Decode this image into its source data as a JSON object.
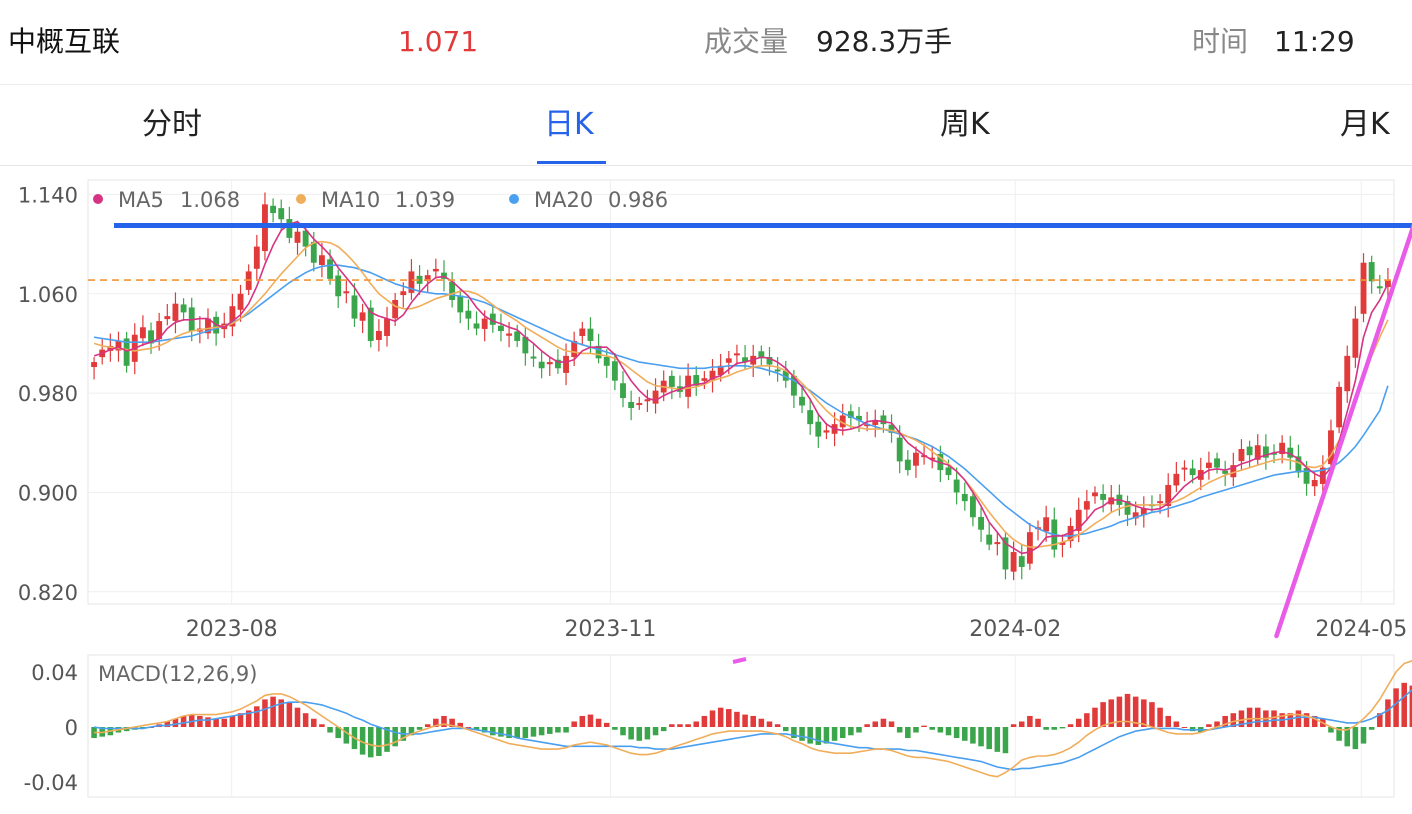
{
  "header": {
    "name": "中概互联",
    "price": "1.071",
    "volume_label": "成交量",
    "volume_value": "928.3万手",
    "time_label": "时间",
    "time_value": "11:29"
  },
  "tabs": [
    {
      "label": "分时",
      "active": false
    },
    {
      "label": "日K",
      "active": true
    },
    {
      "label": "周K",
      "active": false
    },
    {
      "label": "月K",
      "active": false
    }
  ],
  "colors": {
    "up": "#e03a3a",
    "down": "#3aa54a",
    "ma5": "#d63384",
    "ma10": "#f0ad5a",
    "ma20": "#4a9ff0",
    "accent": "#2563eb",
    "trendline": "#e85ce8",
    "dashed": "#f0953a"
  },
  "chart_data": [
    {
      "type": "candlestick",
      "legend": [
        {
          "name": "MA5",
          "value": "1.068"
        },
        {
          "name": "MA10",
          "value": "1.039"
        },
        {
          "name": "MA20",
          "value": "0.986"
        }
      ],
      "y_ticks": [
        "1.140",
        "1.060",
        "0.980",
        "0.900",
        "0.820"
      ],
      "ylim": [
        0.815,
        1.15
      ],
      "x_ticks": [
        "2023-08",
        "2023-11",
        "2024-02",
        "2024-05"
      ],
      "x_tick_positions": [
        0.11,
        0.4,
        0.71,
        0.975
      ],
      "horizontal_line": 1.115,
      "dashed_line": 1.071,
      "trendline": [
        [
          0.91,
          0.75
        ],
        [
          1.02,
          1.15
        ]
      ],
      "close": [
        1.005,
        1.015,
        1.018,
        1.022,
        1.002,
        1.027,
        1.033,
        1.02,
        1.038,
        1.042,
        1.052,
        1.045,
        1.03,
        1.032,
        1.04,
        1.028,
        1.036,
        1.05,
        1.06,
        1.078,
        1.098,
        1.132,
        1.125,
        1.12,
        1.105,
        1.11,
        1.098,
        1.085,
        1.091,
        1.072,
        1.058,
        1.062,
        1.04,
        1.045,
        1.022,
        1.03,
        1.04,
        1.055,
        1.062,
        1.078,
        1.068,
        1.075,
        1.08,
        1.072,
        1.055,
        1.045,
        1.04,
        1.032,
        1.04,
        1.035,
        1.03,
        1.028,
        1.022,
        1.012,
        1.008,
        1.0,
        1.005,
        1.0,
        1.01,
        1.022,
        1.032,
        1.022,
        1.008,
        1.002,
        0.99,
        0.976,
        0.968,
        0.972,
        0.975,
        0.982,
        0.99,
        0.985,
        0.981,
        0.994,
        0.986,
        0.992,
        0.998,
        1.002,
        1.008,
        1.012,
        1.005,
        1.01,
        1.008,
        1.003,
        0.998,
        0.99,
        0.978,
        0.97,
        0.955,
        0.945,
        0.95,
        0.955,
        0.962,
        0.96,
        0.958,
        0.955,
        0.958,
        0.955,
        0.948,
        0.925,
        0.918,
        0.932,
        0.93,
        0.928,
        0.918,
        0.914,
        0.9,
        0.893,
        0.88,
        0.87,
        0.858,
        0.86,
        0.838,
        0.852,
        0.84,
        0.868,
        0.872,
        0.88,
        0.854,
        0.86,
        0.873,
        0.886,
        0.893,
        0.9,
        0.894,
        0.896,
        0.89,
        0.882,
        0.884,
        0.887,
        0.89,
        0.893,
        0.906,
        0.915,
        0.92,
        0.914,
        0.918,
        0.924,
        0.92,
        0.915,
        0.922,
        0.935,
        0.93,
        0.938,
        0.928,
        0.931,
        0.94,
        0.928,
        0.916,
        0.907,
        0.91,
        0.92,
        0.95,
        0.985,
        1.01,
        1.04,
        1.085,
        1.07,
        1.065,
        1.071
      ],
      "ma5": [
        1.01,
        1.012,
        1.015,
        1.017,
        1.014,
        1.016,
        1.019,
        1.021,
        1.024,
        1.032,
        1.037,
        1.039,
        1.039,
        1.04,
        1.04,
        1.035,
        1.033,
        1.038,
        1.043,
        1.052,
        1.066,
        1.084,
        1.099,
        1.111,
        1.116,
        1.118,
        1.112,
        1.104,
        1.098,
        1.091,
        1.081,
        1.073,
        1.065,
        1.055,
        1.045,
        1.042,
        1.04,
        1.038,
        1.043,
        1.053,
        1.061,
        1.068,
        1.073,
        1.074,
        1.07,
        1.064,
        1.058,
        1.049,
        1.042,
        1.038,
        1.036,
        1.033,
        1.031,
        1.025,
        1.02,
        1.014,
        1.009,
        1.005,
        1.005,
        1.007,
        1.014,
        1.017,
        1.017,
        1.017,
        1.011,
        1.0,
        0.99,
        0.982,
        0.976,
        0.974,
        0.978,
        0.981,
        0.983,
        0.986,
        0.987,
        0.988,
        0.992,
        0.994,
        0.999,
        1.004,
        1.005,
        1.007,
        1.009,
        1.008,
        1.005,
        1.0,
        0.993,
        0.985,
        0.975,
        0.963,
        0.955,
        0.951,
        0.95,
        0.951,
        0.953,
        0.957,
        0.958,
        0.957,
        0.956,
        0.948,
        0.94,
        0.935,
        0.93,
        0.926,
        0.924,
        0.922,
        0.917,
        0.91,
        0.9,
        0.889,
        0.876,
        0.868,
        0.859,
        0.855,
        0.851,
        0.852,
        0.856,
        0.864,
        0.865,
        0.865,
        0.868,
        0.871,
        0.878,
        0.886,
        0.889,
        0.894,
        0.894,
        0.892,
        0.889,
        0.887,
        0.886,
        0.887,
        0.891,
        0.898,
        0.905,
        0.91,
        0.914,
        0.918,
        0.919,
        0.918,
        0.92,
        0.923,
        0.925,
        0.928,
        0.93,
        0.932,
        0.933,
        0.931,
        0.927,
        0.92,
        0.915,
        0.912,
        0.92,
        0.941,
        0.965,
        0.99,
        1.025,
        1.045,
        1.055,
        1.068
      ],
      "ma10": [
        1.02,
        1.018,
        1.017,
        1.016,
        1.015,
        1.014,
        1.015,
        1.016,
        1.018,
        1.021,
        1.025,
        1.028,
        1.03,
        1.031,
        1.032,
        1.033,
        1.034,
        1.036,
        1.04,
        1.046,
        1.053,
        1.06,
        1.068,
        1.076,
        1.083,
        1.09,
        1.097,
        1.101,
        1.102,
        1.101,
        1.098,
        1.092,
        1.085,
        1.077,
        1.068,
        1.06,
        1.055,
        1.05,
        1.048,
        1.048,
        1.05,
        1.053,
        1.056,
        1.058,
        1.06,
        1.062,
        1.062,
        1.06,
        1.056,
        1.051,
        1.046,
        1.042,
        1.038,
        1.033,
        1.029,
        1.025,
        1.021,
        1.017,
        1.014,
        1.013,
        1.012,
        1.012,
        1.011,
        1.01,
        1.008,
        1.004,
        0.999,
        0.994,
        0.989,
        0.986,
        0.985,
        0.984,
        0.983,
        0.984,
        0.985,
        0.987,
        0.99,
        0.992,
        0.994,
        0.997,
        0.999,
        1.001,
        1.002,
        1.002,
        1.001,
        0.998,
        0.994,
        0.988,
        0.981,
        0.973,
        0.966,
        0.96,
        0.956,
        0.953,
        0.952,
        0.951,
        0.951,
        0.951,
        0.95,
        0.948,
        0.945,
        0.942,
        0.938,
        0.933,
        0.928,
        0.923,
        0.917,
        0.91,
        0.902,
        0.893,
        0.884,
        0.876,
        0.868,
        0.862,
        0.858,
        0.856,
        0.856,
        0.857,
        0.858,
        0.86,
        0.862,
        0.866,
        0.87,
        0.875,
        0.879,
        0.884,
        0.887,
        0.889,
        0.89,
        0.89,
        0.89,
        0.89,
        0.891,
        0.893,
        0.896,
        0.9,
        0.904,
        0.908,
        0.911,
        0.914,
        0.916,
        0.918,
        0.92,
        0.922,
        0.924,
        0.926,
        0.927,
        0.926,
        0.924,
        0.921,
        0.92,
        0.922,
        0.93,
        0.942,
        0.956,
        0.972,
        0.992,
        1.01,
        1.025,
        1.039
      ],
      "ma20": [
        1.025,
        1.024,
        1.023,
        1.022,
        1.021,
        1.021,
        1.021,
        1.021,
        1.022,
        1.023,
        1.024,
        1.025,
        1.026,
        1.028,
        1.03,
        1.032,
        1.034,
        1.037,
        1.04,
        1.044,
        1.049,
        1.054,
        1.059,
        1.064,
        1.069,
        1.073,
        1.077,
        1.08,
        1.082,
        1.083,
        1.083,
        1.082,
        1.081,
        1.079,
        1.077,
        1.074,
        1.071,
        1.068,
        1.066,
        1.064,
        1.062,
        1.061,
        1.06,
        1.06,
        1.059,
        1.058,
        1.057,
        1.055,
        1.053,
        1.05,
        1.047,
        1.044,
        1.041,
        1.038,
        1.035,
        1.032,
        1.029,
        1.026,
        1.023,
        1.021,
        1.019,
        1.017,
        1.015,
        1.013,
        1.011,
        1.009,
        1.007,
        1.005,
        1.004,
        1.003,
        1.002,
        1.001,
        1.0,
        1.0,
        1.0,
        1.0,
        1.001,
        1.001,
        1.002,
        1.002,
        1.002,
        1.001,
        1.0,
        0.998,
        0.996,
        0.993,
        0.99,
        0.986,
        0.982,
        0.977,
        0.972,
        0.968,
        0.964,
        0.961,
        0.958,
        0.955,
        0.953,
        0.951,
        0.949,
        0.947,
        0.945,
        0.943,
        0.94,
        0.937,
        0.933,
        0.929,
        0.924,
        0.919,
        0.913,
        0.907,
        0.901,
        0.895,
        0.889,
        0.884,
        0.879,
        0.874,
        0.871,
        0.868,
        0.866,
        0.865,
        0.865,
        0.866,
        0.867,
        0.869,
        0.871,
        0.873,
        0.876,
        0.878,
        0.88,
        0.882,
        0.884,
        0.885,
        0.887,
        0.889,
        0.891,
        0.893,
        0.896,
        0.898,
        0.9,
        0.902,
        0.904,
        0.906,
        0.908,
        0.91,
        0.912,
        0.914,
        0.915,
        0.916,
        0.917,
        0.917,
        0.917,
        0.918,
        0.92,
        0.924,
        0.93,
        0.937,
        0.946,
        0.956,
        0.966,
        0.986
      ]
    },
    {
      "type": "macd",
      "title": "MACD(12,26,9)",
      "y_ticks": [
        "0.04",
        "0",
        "-0.04"
      ],
      "ylim": [
        -0.05,
        0.05
      ],
      "hist": [
        -0.008,
        -0.007,
        -0.006,
        -0.004,
        -0.003,
        -0.002,
        -0.001,
        0.0,
        0.002,
        0.004,
        0.006,
        0.008,
        0.009,
        0.008,
        0.007,
        0.006,
        0.006,
        0.008,
        0.01,
        0.012,
        0.015,
        0.02,
        0.022,
        0.02,
        0.018,
        0.014,
        0.01,
        0.006,
        0.002,
        -0.004,
        -0.008,
        -0.012,
        -0.016,
        -0.02,
        -0.022,
        -0.021,
        -0.018,
        -0.014,
        -0.01,
        -0.006,
        -0.002,
        0.002,
        0.006,
        0.008,
        0.006,
        0.003,
        0.0,
        -0.002,
        -0.004,
        -0.006,
        -0.007,
        -0.008,
        -0.008,
        -0.008,
        -0.007,
        -0.006,
        -0.005,
        -0.004,
        -0.004,
        0.004,
        0.008,
        0.009,
        0.006,
        0.003,
        -0.002,
        -0.006,
        -0.009,
        -0.01,
        -0.009,
        -0.006,
        -0.003,
        0.002,
        0.002,
        0.002,
        0.004,
        0.008,
        0.012,
        0.014,
        0.013,
        0.011,
        0.009,
        0.008,
        0.006,
        0.004,
        0.002,
        -0.003,
        -0.008,
        -0.01,
        -0.012,
        -0.013,
        -0.012,
        -0.01,
        -0.008,
        -0.006,
        -0.004,
        0.002,
        0.004,
        0.006,
        0.004,
        -0.004,
        -0.008,
        -0.004,
        0.001,
        -0.002,
        -0.004,
        -0.006,
        -0.008,
        -0.01,
        -0.012,
        -0.014,
        -0.016,
        -0.018,
        -0.019,
        0.002,
        0.004,
        0.008,
        0.006,
        -0.002,
        -0.002,
        -0.001,
        0.002,
        0.006,
        0.01,
        0.014,
        0.018,
        0.02,
        0.022,
        0.024,
        0.022,
        0.02,
        0.018,
        0.014,
        0.008,
        0.004,
        0.0,
        -0.003,
        -0.004,
        0.002,
        0.004,
        0.008,
        0.01,
        0.012,
        0.014,
        0.014,
        0.012,
        0.012,
        0.01,
        0.01,
        0.012,
        0.01,
        0.008,
        0.006,
        -0.004,
        -0.01,
        -0.014,
        -0.016,
        -0.012,
        -0.002,
        0.01,
        0.02,
        0.028,
        0.032,
        0.03,
        0.028,
        0.026
      ],
      "dif": [
        -0.004,
        -0.004,
        -0.003,
        -0.002,
        -0.001,
        0.0,
        0.001,
        0.002,
        0.003,
        0.004,
        0.006,
        0.008,
        0.009,
        0.009,
        0.009,
        0.009,
        0.01,
        0.011,
        0.013,
        0.016,
        0.019,
        0.023,
        0.024,
        0.024,
        0.022,
        0.019,
        0.016,
        0.012,
        0.008,
        0.004,
        0.0,
        -0.004,
        -0.008,
        -0.011,
        -0.013,
        -0.014,
        -0.013,
        -0.011,
        -0.008,
        -0.005,
        -0.003,
        -0.001,
        0.001,
        0.002,
        0.001,
        0.0,
        -0.002,
        -0.004,
        -0.006,
        -0.008,
        -0.01,
        -0.012,
        -0.013,
        -0.014,
        -0.015,
        -0.016,
        -0.016,
        -0.016,
        -0.015,
        -0.013,
        -0.012,
        -0.011,
        -0.012,
        -0.013,
        -0.015,
        -0.017,
        -0.019,
        -0.02,
        -0.02,
        -0.019,
        -0.017,
        -0.015,
        -0.013,
        -0.011,
        -0.009,
        -0.007,
        -0.005,
        -0.004,
        -0.003,
        -0.003,
        -0.003,
        -0.003,
        -0.003,
        -0.004,
        -0.005,
        -0.007,
        -0.01,
        -0.012,
        -0.015,
        -0.017,
        -0.018,
        -0.019,
        -0.019,
        -0.019,
        -0.018,
        -0.017,
        -0.016,
        -0.016,
        -0.017,
        -0.019,
        -0.021,
        -0.022,
        -0.022,
        -0.023,
        -0.024,
        -0.025,
        -0.027,
        -0.029,
        -0.031,
        -0.033,
        -0.035,
        -0.036,
        -0.033,
        -0.029,
        -0.024,
        -0.022,
        -0.021,
        -0.021,
        -0.02,
        -0.018,
        -0.015,
        -0.011,
        -0.006,
        -0.002,
        0.001,
        0.003,
        0.004,
        0.004,
        0.003,
        0.002,
        0.0,
        -0.002,
        -0.004,
        -0.005,
        -0.005,
        -0.005,
        -0.004,
        -0.002,
        0.0,
        0.002,
        0.004,
        0.005,
        0.006,
        0.006,
        0.006,
        0.007,
        0.008,
        0.009,
        0.009,
        0.008,
        0.006,
        0.003,
        0.0,
        -0.002,
        -0.002,
        0.001,
        0.006,
        0.012,
        0.02,
        0.03,
        0.04,
        0.046,
        0.048,
        0.05
      ],
      "dea": [
        0.0,
        -0.001,
        -0.001,
        -0.001,
        -0.001,
        -0.001,
        -0.001,
        0.0,
        0.001,
        0.001,
        0.002,
        0.003,
        0.004,
        0.005,
        0.005,
        0.006,
        0.007,
        0.008,
        0.009,
        0.01,
        0.011,
        0.013,
        0.015,
        0.017,
        0.018,
        0.018,
        0.018,
        0.017,
        0.016,
        0.014,
        0.012,
        0.01,
        0.007,
        0.005,
        0.002,
        0.0,
        -0.002,
        -0.004,
        -0.005,
        -0.005,
        -0.005,
        -0.004,
        -0.003,
        -0.002,
        -0.001,
        -0.001,
        -0.001,
        -0.002,
        -0.003,
        -0.004,
        -0.005,
        -0.006,
        -0.008,
        -0.009,
        -0.01,
        -0.011,
        -0.012,
        -0.013,
        -0.014,
        -0.014,
        -0.014,
        -0.014,
        -0.014,
        -0.014,
        -0.014,
        -0.014,
        -0.014,
        -0.015,
        -0.015,
        -0.016,
        -0.016,
        -0.016,
        -0.015,
        -0.014,
        -0.013,
        -0.012,
        -0.011,
        -0.01,
        -0.009,
        -0.008,
        -0.007,
        -0.006,
        -0.005,
        -0.005,
        -0.005,
        -0.005,
        -0.006,
        -0.007,
        -0.008,
        -0.01,
        -0.011,
        -0.012,
        -0.013,
        -0.014,
        -0.015,
        -0.015,
        -0.016,
        -0.016,
        -0.016,
        -0.016,
        -0.017,
        -0.017,
        -0.018,
        -0.019,
        -0.02,
        -0.021,
        -0.022,
        -0.023,
        -0.024,
        -0.025,
        -0.027,
        -0.029,
        -0.03,
        -0.031,
        -0.03,
        -0.03,
        -0.029,
        -0.028,
        -0.027,
        -0.026,
        -0.024,
        -0.022,
        -0.019,
        -0.016,
        -0.013,
        -0.01,
        -0.007,
        -0.005,
        -0.003,
        -0.002,
        -0.001,
        -0.001,
        -0.001,
        -0.001,
        -0.002,
        -0.002,
        -0.002,
        -0.002,
        -0.001,
        0.0,
        0.001,
        0.002,
        0.003,
        0.004,
        0.004,
        0.005,
        0.005,
        0.006,
        0.007,
        0.007,
        0.007,
        0.006,
        0.005,
        0.004,
        0.003,
        0.003,
        0.004,
        0.006,
        0.009,
        0.012,
        0.017,
        0.022,
        0.027,
        0.032,
        0.036
      ]
    }
  ]
}
